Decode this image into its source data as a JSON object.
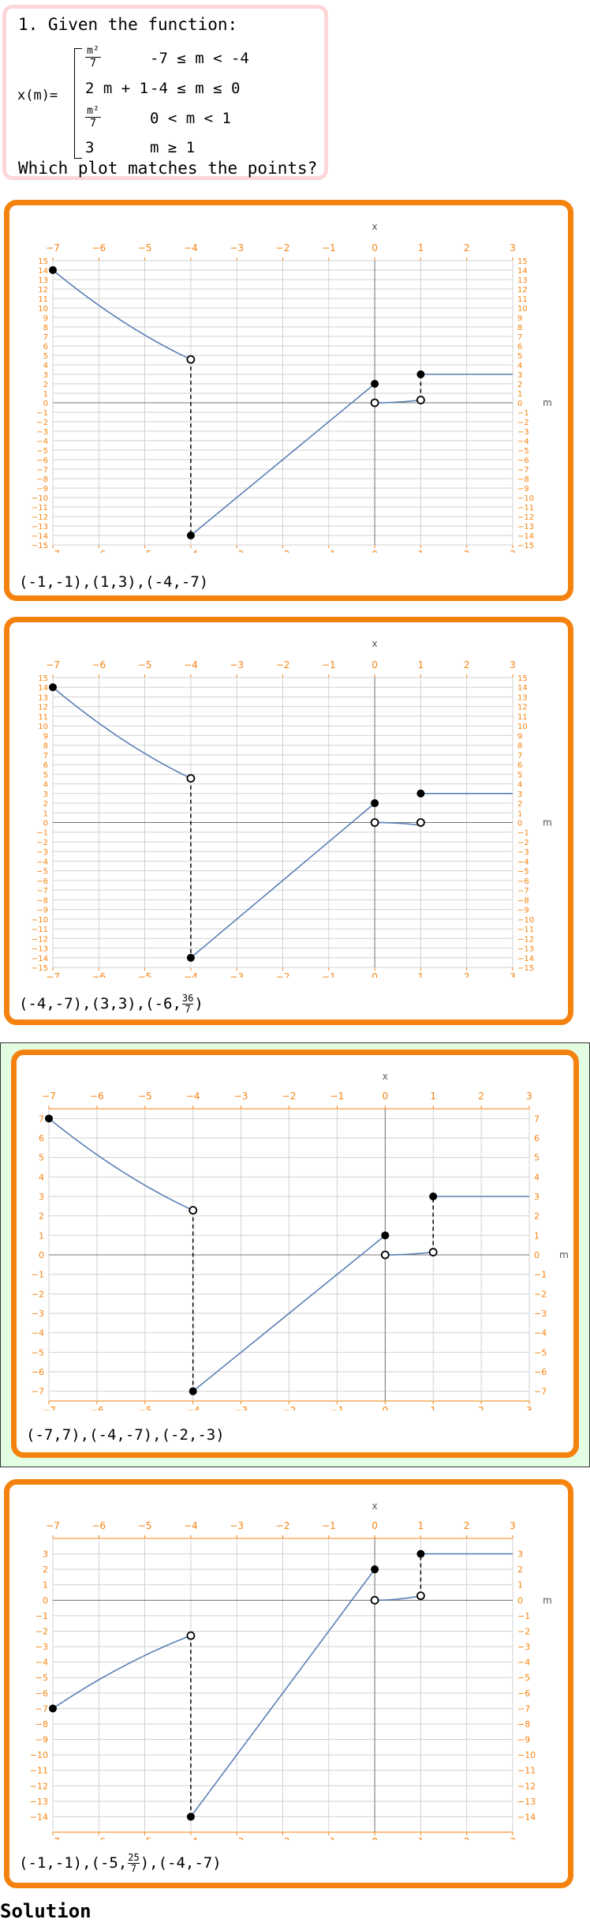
{
  "question": {
    "title": "1. Given the function:",
    "function_name": "x(m)=",
    "pieces": [
      {
        "expr_num": "m²",
        "expr_den": "7",
        "cond": "-7 ≤ m < -4"
      },
      {
        "expr": "2 m + 1",
        "cond": "-4 ≤ m ≤ 0"
      },
      {
        "expr_num": "m²",
        "expr_den": "7",
        "cond": "0 < m < 1"
      },
      {
        "expr": "3",
        "cond": "m ≥ 1"
      }
    ],
    "prompt": "Which plot matches the points?"
  },
  "options": [
    {
      "points_label": "(-1,-1),(1,3),(-4,-7)",
      "points_parts": [
        {
          "t": "(-1,-1),(1,3),(-4,-7)"
        }
      ],
      "x_axis_label": "x",
      "y_axis_label": "m",
      "selected": false,
      "chart_data": {
        "type": "line",
        "xlim": [
          -7,
          3
        ],
        "ylim": [
          -15,
          15
        ],
        "x_ticks": [
          -7,
          -6,
          -5,
          -4,
          -3,
          -2,
          -1,
          0,
          1,
          2,
          3
        ],
        "y_ticks": [
          15,
          14,
          13,
          12,
          11,
          10,
          9,
          8,
          7,
          6,
          5,
          4,
          3,
          2,
          1,
          0,
          -1,
          -2,
          -3,
          -4,
          -5,
          -6,
          -7,
          -8,
          -9,
          -10,
          -11,
          -12,
          -13,
          -14,
          -15
        ],
        "segments": [
          {
            "kind": "curve",
            "f": "quad",
            "a": 0.2857,
            "from": -7,
            "to": -4
          },
          {
            "kind": "line",
            "points": [
              [
                -4,
                -14
              ],
              [
                0,
                2
              ]
            ]
          },
          {
            "kind": "curve",
            "f": "quad",
            "a": 0.2857,
            "from": 0,
            "to": 1
          },
          {
            "kind": "line",
            "points": [
              [
                1,
                3
              ],
              [
                3,
                3
              ]
            ]
          }
        ],
        "dashed": [
          [
            [
              -4,
              4.57
            ],
            [
              -4,
              -14
            ]
          ],
          [
            [
              1,
              0.29
            ],
            [
              1,
              3
            ]
          ]
        ],
        "closed": [
          [
            -7,
            14
          ],
          [
            -4,
            -14
          ],
          [
            0,
            2
          ],
          [
            1,
            3
          ]
        ],
        "open": [
          [
            -4,
            4.57
          ],
          [
            0,
            0
          ],
          [
            1,
            0.29
          ]
        ]
      }
    },
    {
      "points_label": "(-4,-7),(3,3),(-6,36/7)",
      "points_parts": [
        {
          "t": "(-4,-7),(3,3),(-6,"
        },
        {
          "num": "36",
          "den": "7"
        },
        {
          "t": ")"
        }
      ],
      "x_axis_label": "x",
      "y_axis_label": "m",
      "selected": false,
      "chart_data": {
        "type": "line",
        "xlim": [
          -7,
          3
        ],
        "ylim": [
          -15,
          15
        ],
        "x_ticks": [
          -7,
          -6,
          -5,
          -4,
          -3,
          -2,
          -1,
          0,
          1,
          2,
          3
        ],
        "y_ticks": [
          15,
          14,
          13,
          12,
          11,
          10,
          9,
          8,
          7,
          6,
          5,
          4,
          3,
          2,
          1,
          0,
          -1,
          -2,
          -3,
          -4,
          -5,
          -6,
          -7,
          -8,
          -9,
          -10,
          -11,
          -12,
          -13,
          -14,
          -15
        ],
        "segments": [
          {
            "kind": "curve",
            "f": "quad",
            "a": 0.2857,
            "from": -7,
            "to": -4
          },
          {
            "kind": "line",
            "points": [
              [
                -4,
                -14
              ],
              [
                0,
                2
              ]
            ]
          },
          {
            "kind": "curve",
            "f": "negquad",
            "a": 0.2857,
            "from": 0,
            "to": 1
          },
          {
            "kind": "line",
            "points": [
              [
                1,
                3
              ],
              [
                3,
                3
              ]
            ]
          }
        ],
        "dashed": [
          [
            [
              -4,
              4.57
            ],
            [
              -4,
              -14
            ]
          ]
        ],
        "closed": [
          [
            -7,
            14
          ],
          [
            -4,
            -14
          ],
          [
            0,
            2
          ],
          [
            1,
            3
          ]
        ],
        "open": [
          [
            -4,
            4.57
          ],
          [
            0,
            0
          ],
          [
            1,
            0
          ]
        ]
      }
    },
    {
      "points_label": "(-7,7),(-4,-7),(-2,-3)",
      "points_parts": [
        {
          "t": "(-7,7),(-4,-7),(-2,-3)"
        }
      ],
      "x_axis_label": "x",
      "y_axis_label": "m",
      "selected": true,
      "chart_data": {
        "type": "line",
        "xlim": [
          -7,
          3
        ],
        "ylim": [
          -7.5,
          7.5
        ],
        "x_ticks": [
          -7,
          -6,
          -5,
          -4,
          -3,
          -2,
          -1,
          0,
          1,
          2,
          3
        ],
        "y_ticks": [
          7,
          6,
          5,
          4,
          3,
          2,
          1,
          0,
          -1,
          -2,
          -3,
          -4,
          -5,
          -6,
          -7
        ],
        "segments": [
          {
            "kind": "curve",
            "f": "quad",
            "a": 0.1429,
            "from": -7,
            "to": -4
          },
          {
            "kind": "line",
            "points": [
              [
                -4,
                -7
              ],
              [
                0,
                1
              ]
            ]
          },
          {
            "kind": "curve",
            "f": "quad",
            "a": 0.1429,
            "from": 0,
            "to": 1
          },
          {
            "kind": "line",
            "points": [
              [
                1,
                3
              ],
              [
                3,
                3
              ]
            ]
          }
        ],
        "dashed": [
          [
            [
              -4,
              2.29
            ],
            [
              -4,
              -7
            ]
          ],
          [
            [
              1,
              0.14
            ],
            [
              1,
              3
            ]
          ]
        ],
        "closed": [
          [
            -7,
            7
          ],
          [
            -4,
            -7
          ],
          [
            0,
            1
          ],
          [
            1,
            3
          ]
        ],
        "open": [
          [
            -4,
            2.29
          ],
          [
            0,
            0
          ],
          [
            1,
            0.14
          ]
        ]
      }
    },
    {
      "points_label": "(-1,-1),(-5,25/7),(-4,-7)",
      "points_parts": [
        {
          "t": "(-1,-1),(-5,"
        },
        {
          "num": "25",
          "den": "7"
        },
        {
          "t": "),(-4,-7)"
        }
      ],
      "x_axis_label": "x",
      "y_axis_label": "m",
      "selected": false,
      "chart_data": {
        "type": "line",
        "xlim": [
          -7,
          3
        ],
        "ylim": [
          -15,
          4
        ],
        "x_ticks": [
          -7,
          -6,
          -5,
          -4,
          -3,
          -2,
          -1,
          0,
          1,
          2,
          3
        ],
        "y_ticks": [
          3,
          2,
          1,
          0,
          -1,
          -2,
          -3,
          -4,
          -5,
          -6,
          -7,
          -8,
          -9,
          -10,
          -11,
          -12,
          -13,
          -14
        ],
        "segments": [
          {
            "kind": "curve",
            "f": "negquad",
            "a": 0.1429,
            "from": -7,
            "to": -4
          },
          {
            "kind": "line",
            "points": [
              [
                -4,
                -14
              ],
              [
                0,
                2
              ]
            ]
          },
          {
            "kind": "curve",
            "f": "quad",
            "a": 0.2857,
            "from": 0,
            "to": 1
          },
          {
            "kind": "line",
            "points": [
              [
                1,
                3
              ],
              [
                3,
                3
              ]
            ]
          }
        ],
        "dashed": [
          [
            [
              -4,
              -2.29
            ],
            [
              -4,
              -14
            ]
          ],
          [
            [
              1,
              0.29
            ],
            [
              1,
              3
            ]
          ]
        ],
        "closed": [
          [
            -7,
            -7
          ],
          [
            -4,
            -14
          ],
          [
            0,
            2
          ],
          [
            1,
            3
          ]
        ],
        "open": [
          [
            -4,
            -2.29
          ],
          [
            0,
            0
          ],
          [
            1,
            0.29
          ]
        ]
      }
    }
  ],
  "solution_label": "Solution",
  "colors": {
    "accent": "#f5820f",
    "curve": "#5b7fb5",
    "selected_bg": "#e2fde2",
    "question_border": "#fdd6d8"
  }
}
